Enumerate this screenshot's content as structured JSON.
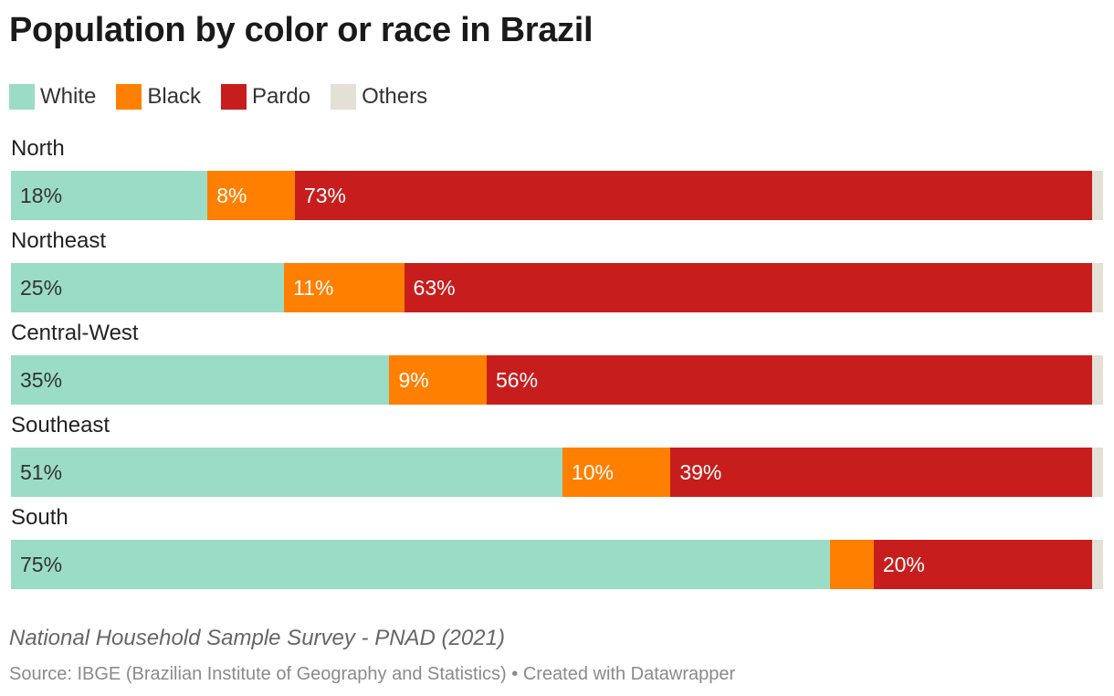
{
  "title": "Population by color or race in Brazil",
  "legend": [
    {
      "label": "White",
      "color": "#9bdcc6"
    },
    {
      "label": "Black",
      "color": "#ff7f00"
    },
    {
      "label": "Pardo",
      "color": "#c71e1d"
    },
    {
      "label": "Others",
      "color": "#e4e0d5"
    }
  ],
  "chart_data": {
    "type": "bar",
    "orientation": "horizontal",
    "stacked": true,
    "title": "Population by color or race in Brazil",
    "categories": [
      "North",
      "Northeast",
      "Central-West",
      "Southeast",
      "South"
    ],
    "series": [
      {
        "name": "White",
        "color": "#9bdcc6",
        "text_color": "#333333",
        "values": [
          18,
          25,
          35,
          51,
          75
        ],
        "labels": [
          "18%",
          "25%",
          "35%",
          "51%",
          "75%"
        ]
      },
      {
        "name": "Black",
        "color": "#ff7f00",
        "text_color": "#ffffff",
        "values": [
          8,
          11,
          9,
          10,
          4
        ],
        "labels": [
          "8%",
          "11%",
          "9%",
          "10%",
          ""
        ]
      },
      {
        "name": "Pardo",
        "color": "#c71e1d",
        "text_color": "#ffffff",
        "values": [
          73,
          63,
          56,
          39,
          20
        ],
        "labels": [
          "73%",
          "63%",
          "56%",
          "39%",
          "20%"
        ]
      },
      {
        "name": "Others",
        "color": "#e4e0d5",
        "text_color": "#333333",
        "values": [
          1,
          1,
          1,
          1,
          1
        ],
        "labels": [
          "",
          "",
          "",
          "",
          ""
        ]
      }
    ],
    "xlim": [
      0,
      100
    ],
    "grid": false,
    "legend_position": "top-left"
  },
  "note": "National Household Sample Survey - PNAD (2021)",
  "source": "Source: IBGE (Brazilian Institute of Geography and Statistics) • Created with Datawrapper"
}
